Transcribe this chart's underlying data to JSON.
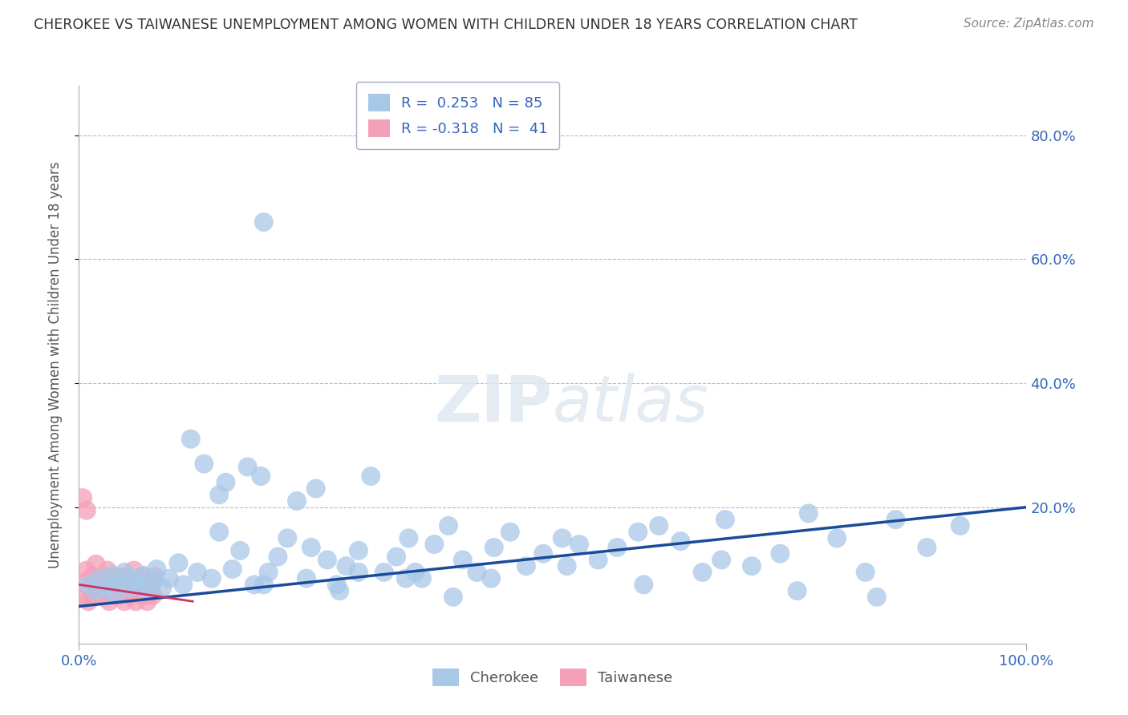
{
  "title": "CHEROKEE VS TAIWANESE UNEMPLOYMENT AMONG WOMEN WITH CHILDREN UNDER 18 YEARS CORRELATION CHART",
  "source": "Source: ZipAtlas.com",
  "ylabel": "Unemployment Among Women with Children Under 18 years",
  "xlim": [
    0,
    1.0
  ],
  "ylim": [
    -0.02,
    0.88
  ],
  "xticks": [
    0.0,
    1.0
  ],
  "xticklabels": [
    "0.0%",
    "100.0%"
  ],
  "yticks": [
    0.2,
    0.4,
    0.6,
    0.8
  ],
  "yticklabels": [
    "20.0%",
    "40.0%",
    "60.0%",
    "80.0%"
  ],
  "cherokee_color": "#a8c8e8",
  "taiwanese_color": "#f4a0b8",
  "trend_cherokee_color": "#1a4a9a",
  "trend_taiwanese_color": "#cc3366",
  "legend_r_cherokee": "R =  0.253",
  "legend_n_cherokee": "N = 85",
  "legend_r_taiwanese": "R = -0.318",
  "legend_n_taiwanese": "N =  41",
  "cherokee_trend_x": [
    0.0,
    1.0
  ],
  "cherokee_trend_y": [
    0.04,
    0.2
  ],
  "taiwanese_trend_x": [
    0.0,
    0.12
  ],
  "taiwanese_trend_y": [
    0.075,
    0.048
  ],
  "background_color": "#ffffff",
  "grid_color": "#bbbbbb",
  "title_color": "#333333",
  "axis_label_color": "#555555",
  "tick_color": "#3366bb",
  "legend_text_color": "#3366bb",
  "cherokee_points_x": [
    0.01,
    0.018,
    0.022,
    0.03,
    0.035,
    0.038,
    0.042,
    0.048,
    0.052,
    0.058,
    0.062,
    0.068,
    0.072,
    0.078,
    0.082,
    0.088,
    0.095,
    0.105,
    0.11,
    0.118,
    0.125,
    0.132,
    0.14,
    0.148,
    0.155,
    0.162,
    0.17,
    0.178,
    0.185,
    0.192,
    0.2,
    0.21,
    0.22,
    0.23,
    0.24,
    0.25,
    0.262,
    0.272,
    0.282,
    0.295,
    0.308,
    0.322,
    0.335,
    0.348,
    0.362,
    0.375,
    0.39,
    0.405,
    0.42,
    0.438,
    0.455,
    0.472,
    0.49,
    0.51,
    0.528,
    0.548,
    0.568,
    0.59,
    0.612,
    0.635,
    0.658,
    0.682,
    0.71,
    0.74,
    0.77,
    0.8,
    0.83,
    0.862,
    0.895,
    0.93,
    0.148,
    0.195,
    0.245,
    0.295,
    0.345,
    0.395,
    0.195,
    0.275,
    0.355,
    0.435,
    0.515,
    0.596,
    0.678,
    0.758,
    0.842
  ],
  "cherokee_points_y": [
    0.075,
    0.065,
    0.085,
    0.07,
    0.09,
    0.06,
    0.08,
    0.095,
    0.07,
    0.085,
    0.075,
    0.09,
    0.065,
    0.08,
    0.1,
    0.07,
    0.085,
    0.11,
    0.075,
    0.31,
    0.095,
    0.27,
    0.085,
    0.22,
    0.24,
    0.1,
    0.13,
    0.265,
    0.075,
    0.25,
    0.095,
    0.12,
    0.15,
    0.21,
    0.085,
    0.23,
    0.115,
    0.075,
    0.105,
    0.13,
    0.25,
    0.095,
    0.12,
    0.15,
    0.085,
    0.14,
    0.17,
    0.115,
    0.095,
    0.135,
    0.16,
    0.105,
    0.125,
    0.15,
    0.14,
    0.115,
    0.135,
    0.16,
    0.17,
    0.145,
    0.095,
    0.18,
    0.105,
    0.125,
    0.19,
    0.15,
    0.095,
    0.18,
    0.135,
    0.17,
    0.16,
    0.66,
    0.135,
    0.095,
    0.085,
    0.055,
    0.075,
    0.065,
    0.095,
    0.085,
    0.105,
    0.075,
    0.115,
    0.065,
    0.055
  ],
  "taiwanese_points_x": [
    0.004,
    0.006,
    0.008,
    0.01,
    0.012,
    0.014,
    0.016,
    0.018,
    0.02,
    0.022,
    0.024,
    0.026,
    0.028,
    0.03,
    0.032,
    0.034,
    0.036,
    0.038,
    0.04,
    0.042,
    0.044,
    0.046,
    0.048,
    0.05,
    0.052,
    0.054,
    0.056,
    0.058,
    0.06,
    0.062,
    0.064,
    0.066,
    0.068,
    0.07,
    0.072,
    0.074,
    0.076,
    0.078,
    0.08,
    0.004,
    0.008
  ],
  "taiwanese_points_y": [
    0.078,
    0.058,
    0.098,
    0.048,
    0.068,
    0.088,
    0.058,
    0.108,
    0.068,
    0.078,
    0.058,
    0.088,
    0.068,
    0.098,
    0.048,
    0.078,
    0.058,
    0.068,
    0.088,
    0.058,
    0.078,
    0.068,
    0.048,
    0.088,
    0.058,
    0.078,
    0.068,
    0.098,
    0.048,
    0.078,
    0.058,
    0.068,
    0.088,
    0.058,
    0.048,
    0.078,
    0.068,
    0.058,
    0.088,
    0.215,
    0.195
  ]
}
